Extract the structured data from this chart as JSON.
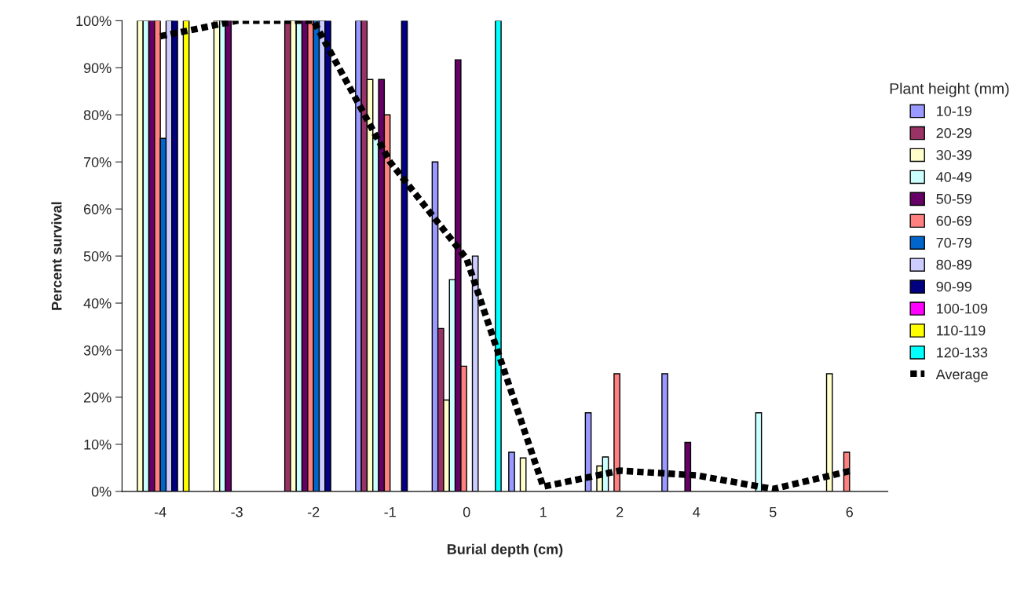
{
  "chart_data": {
    "type": "bar",
    "xlabel": "Burial depth (cm)",
    "ylabel": "Percent survival",
    "legend_title": "Plant height (mm)",
    "categories": [
      "-4",
      "-3",
      "-2",
      "-1",
      "0",
      "1",
      "2",
      "4",
      "5",
      "6"
    ],
    "ylim": [
      0,
      100
    ],
    "yticks": [
      {
        "value": 0,
        "label": "0%"
      },
      {
        "value": 10,
        "label": "10%"
      },
      {
        "value": 20,
        "label": "20%"
      },
      {
        "value": 30,
        "label": "30%"
      },
      {
        "value": 40,
        "label": "40%"
      },
      {
        "value": 50,
        "label": "50%"
      },
      {
        "value": 60,
        "label": "60%"
      },
      {
        "value": 70,
        "label": "70%"
      },
      {
        "value": 80,
        "label": "80%"
      },
      {
        "value": 90,
        "label": "90%"
      },
      {
        "value": 100,
        "label": "100%"
      }
    ],
    "grid": false,
    "legend": "right",
    "series": [
      {
        "name": "10-19",
        "color": "#9999ff",
        "values": [
          null,
          null,
          null,
          100,
          70,
          8.3,
          16.7,
          25,
          null,
          null
        ]
      },
      {
        "name": "20-29",
        "color": "#993366",
        "values": [
          null,
          null,
          100,
          100,
          34.6,
          null,
          null,
          null,
          null,
          null
        ]
      },
      {
        "name": "30-39",
        "color": "#ffffcc",
        "values": [
          100,
          100,
          100,
          87.5,
          19.4,
          7.1,
          5.4,
          null,
          null,
          25
        ]
      },
      {
        "name": "40-49",
        "color": "#ccffff",
        "values": [
          100,
          100,
          100,
          75,
          45,
          null,
          7.3,
          null,
          16.7,
          null
        ]
      },
      {
        "name": "50-59",
        "color": "#660066",
        "values": [
          100,
          100,
          100,
          87.5,
          91.7,
          null,
          null,
          10.4,
          null,
          null
        ]
      },
      {
        "name": "60-69",
        "color": "#ff8080",
        "values": [
          100,
          null,
          100,
          80,
          26.6,
          null,
          25,
          null,
          null,
          8.3
        ]
      },
      {
        "name": "70-79",
        "color": "#0066cc",
        "values": [
          75,
          null,
          100,
          null,
          null,
          null,
          null,
          null,
          null,
          null
        ]
      },
      {
        "name": "80-89",
        "color": "#ccccff",
        "values": [
          100,
          null,
          100,
          null,
          50,
          null,
          null,
          null,
          null,
          null
        ]
      },
      {
        "name": "90-99",
        "color": "#000080",
        "values": [
          100,
          null,
          100,
          100,
          null,
          null,
          null,
          null,
          null,
          null
        ]
      },
      {
        "name": "100-109",
        "color": "#ff00ff",
        "values": [
          null,
          null,
          null,
          null,
          null,
          null,
          null,
          null,
          null,
          null
        ]
      },
      {
        "name": "110-119",
        "color": "#ffff00",
        "values": [
          100,
          null,
          null,
          null,
          null,
          null,
          null,
          null,
          null,
          null
        ]
      },
      {
        "name": "120-133",
        "color": "#00ffff",
        "values": [
          null,
          null,
          null,
          null,
          100,
          null,
          null,
          null,
          null,
          null
        ]
      },
      {
        "name": "Average",
        "type": "line",
        "color": "#000000",
        "line_style": "dotted",
        "marker": "none",
        "values": [
          96.7,
          100,
          100,
          70,
          49.4,
          1,
          4.4,
          3.4,
          0.5,
          4.3
        ]
      }
    ]
  }
}
